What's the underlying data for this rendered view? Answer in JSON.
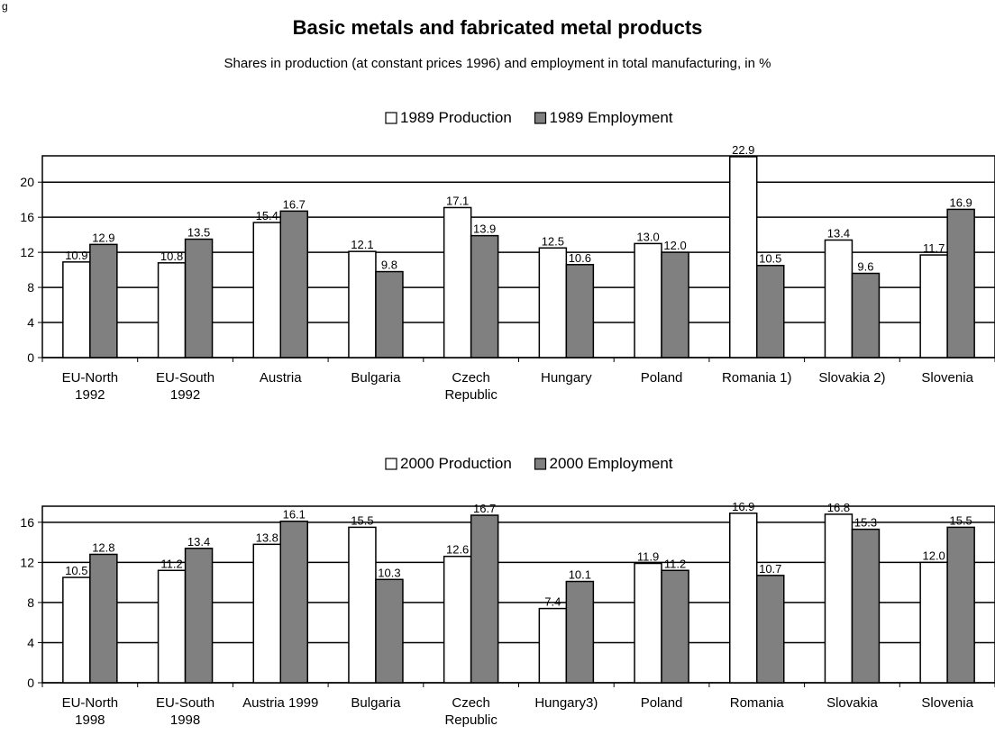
{
  "header": {
    "figure_label": "g",
    "title": "Basic metals and fabricated metal products",
    "subtitle": "Shares in production (at constant prices 1996) and employment in total manufacturing, in %"
  },
  "colors": {
    "production": "#ffffff",
    "employment": "#808080",
    "outline": "#000000"
  },
  "chart_data": [
    {
      "type": "bar",
      "categories": [
        [
          "EU-North",
          "1992"
        ],
        [
          "EU-South",
          "1992"
        ],
        [
          "Austria"
        ],
        [
          "Bulgaria"
        ],
        [
          "Czech",
          "Republic"
        ],
        [
          "Hungary"
        ],
        [
          "Poland"
        ],
        [
          "Romania 1)"
        ],
        [
          "Slovakia 2)"
        ],
        [
          "Slovenia"
        ]
      ],
      "series": [
        {
          "name": "1989 Production",
          "values": [
            10.9,
            10.8,
            15.4,
            12.1,
            17.1,
            12.5,
            13.0,
            22.9,
            13.4,
            11.7
          ]
        },
        {
          "name": "1989 Employment",
          "values": [
            12.9,
            13.5,
            16.7,
            9.8,
            13.9,
            10.6,
            12.0,
            10.5,
            9.6,
            16.9
          ]
        }
      ],
      "value_labels": [
        [
          "10.9",
          "10.8",
          "15.4",
          "12.1",
          "17.1",
          "12.5",
          "13.0",
          "22.9",
          "13.4",
          "11.7"
        ],
        [
          "12.9",
          "13.5",
          "16.7",
          "9.8",
          "13.9",
          "10.6",
          "12.0",
          "10.5",
          "9.6",
          "16.9"
        ]
      ],
      "yticks": [
        "0",
        "4",
        "8",
        "12",
        "16",
        "20"
      ],
      "ylim": [
        0,
        23
      ],
      "grid": true,
      "legend_position": "top-center"
    },
    {
      "type": "bar",
      "categories": [
        [
          "EU-North",
          "1998"
        ],
        [
          "EU-South",
          "1998"
        ],
        [
          "Austria 1999"
        ],
        [
          "Bulgaria"
        ],
        [
          "Czech",
          "Republic"
        ],
        [
          "Hungary3)"
        ],
        [
          "Poland"
        ],
        [
          "Romania"
        ],
        [
          "Slovakia"
        ],
        [
          "Slovenia"
        ]
      ],
      "series": [
        {
          "name": "2000 Production",
          "values": [
            10.5,
            11.2,
            13.8,
            15.5,
            12.6,
            7.4,
            11.9,
            16.9,
            16.8,
            12.0
          ]
        },
        {
          "name": "2000 Employment",
          "values": [
            12.8,
            13.4,
            16.1,
            10.3,
            16.7,
            10.1,
            11.2,
            10.7,
            15.3,
            15.5
          ]
        }
      ],
      "value_labels": [
        [
          "10.5",
          "11.2",
          "13.8",
          "15.5",
          "12.6",
          "7.4",
          "11.9",
          "16.9",
          "16.8",
          "12.0"
        ],
        [
          "12.8",
          "13.4",
          "16.1",
          "10.3",
          "16.7",
          "10.1",
          "11.2",
          "10.7",
          "15.3",
          "15.5"
        ]
      ],
      "yticks": [
        "0",
        "4",
        "8",
        "12",
        "16"
      ],
      "ylim": [
        0,
        17.6
      ],
      "grid": true,
      "legend_position": "top-center"
    }
  ]
}
